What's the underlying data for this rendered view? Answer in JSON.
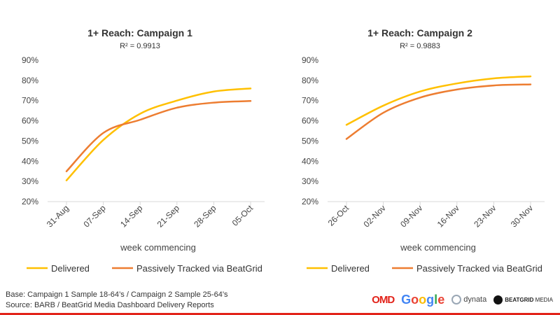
{
  "chart_data": [
    {
      "type": "line",
      "title": "1+ Reach: Campaign 1",
      "subtitle": "R² = 0.9913",
      "xlabel": "week commencing",
      "ylabel": "",
      "categories": [
        "31-Aug",
        "07-Sep",
        "14-Sep",
        "21-Sep",
        "28-Sep",
        "05-Oct"
      ],
      "yticks": [
        "20%",
        "30%",
        "40%",
        "50%",
        "60%",
        "70%",
        "80%",
        "90%"
      ],
      "ylim": [
        20,
        90
      ],
      "series": [
        {
          "name": "Delivered",
          "values": [
            30.5,
            50.5,
            63.5,
            70,
            74.5,
            76
          ]
        },
        {
          "name": "Passively Tracked via BeatGrid",
          "values": [
            35,
            54,
            60.5,
            66.5,
            69,
            69.8
          ]
        }
      ],
      "legend_position": "bottom",
      "grid": false
    },
    {
      "type": "line",
      "title": "1+ Reach: Campaign 2",
      "subtitle": "R² = 0.9883",
      "xlabel": "week commencing",
      "ylabel": "",
      "categories": [
        "26-Oct",
        "02-Nov",
        "09-Nov",
        "16-Nov",
        "23-Nov",
        "30-Nov"
      ],
      "yticks": [
        "20%",
        "30%",
        "40%",
        "50%",
        "60%",
        "70%",
        "80%",
        "90%"
      ],
      "ylim": [
        20,
        90
      ],
      "series": [
        {
          "name": "Delivered",
          "values": [
            58,
            67.5,
            74.5,
            78.5,
            81,
            82
          ]
        },
        {
          "name": "Passively Tracked via BeatGrid",
          "values": [
            51,
            64,
            71.5,
            75.5,
            77.5,
            78
          ]
        }
      ],
      "legend_position": "bottom",
      "grid": false
    }
  ],
  "colors": {
    "delivered": "#ffc000",
    "tracked": "#ed7d31",
    "axis": "#d9d9d9",
    "brand_bar": "#e2231a"
  },
  "footer": {
    "line1": "Base: Campaign 1 Sample 18-64’s / Campaign 2 Sample 25-64’s",
    "line2": "Source: BARB / BeatGrid Media Dashboard Delivery Reports"
  },
  "logos": {
    "omd": "OMD",
    "google": "Google",
    "dynata": "dynata",
    "beatgrid_bold": "BEATGRID",
    "beatgrid_light": "MEDIA"
  }
}
